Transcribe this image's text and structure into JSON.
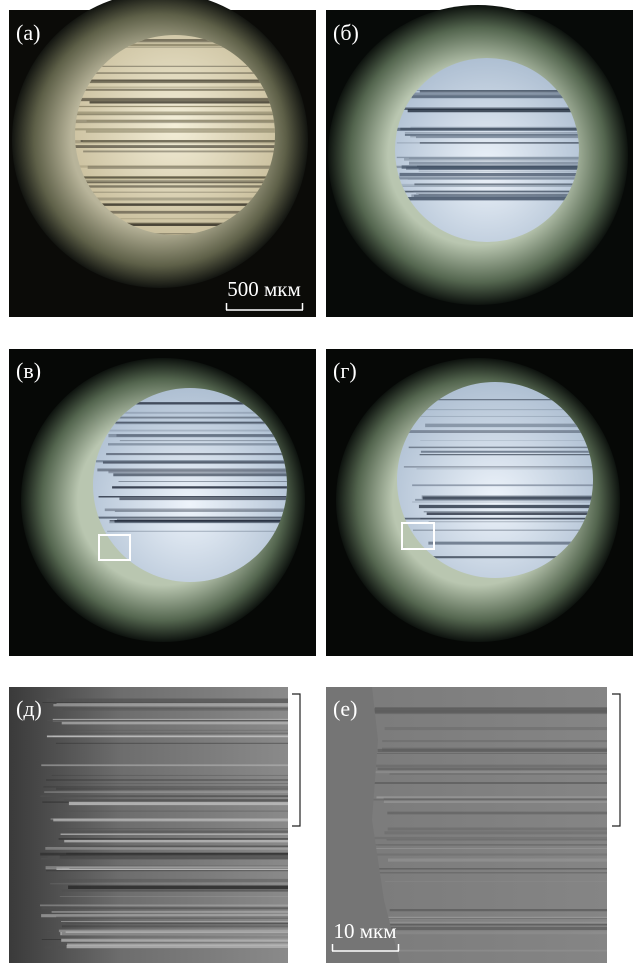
{
  "panels": [
    {
      "label": "(а)",
      "scale_bar": "500 мкм"
    },
    {
      "label": "(б)"
    },
    {
      "label": "(в)"
    },
    {
      "label": "(г)"
    },
    {
      "label": "(д)"
    },
    {
      "label": "(е)",
      "scale_bar": "10 мкм"
    }
  ]
}
